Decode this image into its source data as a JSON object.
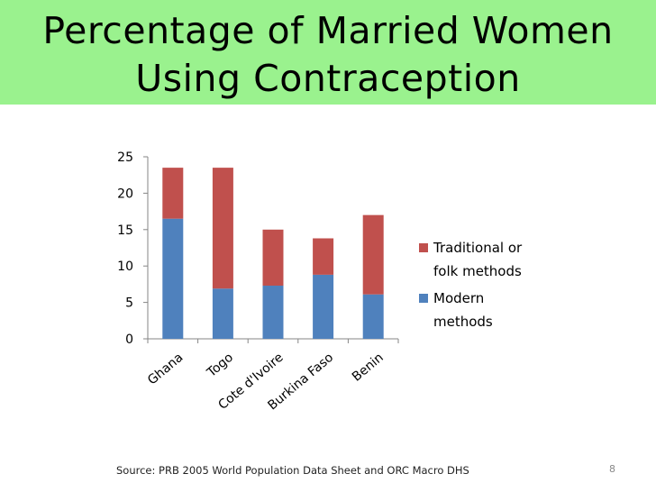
{
  "slide": {
    "title_line1": "Percentage of Married Women",
    "title_line2": "Using Contraception",
    "source": "Source: PRB 2005 World Population Data Sheet and ORC Macro DHS",
    "page_number": "8",
    "colors": {
      "title_band": "#9af28e",
      "modern": "#4f81bd",
      "traditional": "#c0504d"
    }
  },
  "chart_data": {
    "type": "bar",
    "stacked": true,
    "title": "",
    "xlabel": "",
    "ylabel": "",
    "categories": [
      "Ghana",
      "Togo",
      "Cote d'Ivoire",
      "Burkina Faso",
      "Benin"
    ],
    "series": [
      {
        "name": "Modern methods",
        "values": [
          16.5,
          6.9,
          7.3,
          8.8,
          6.1
        ]
      },
      {
        "name": "Traditional or folk methods",
        "values": [
          7.0,
          16.6,
          7.7,
          5.0,
          10.9
        ]
      }
    ],
    "ylim": [
      0,
      25
    ],
    "yticks": [
      0,
      5,
      10,
      15,
      20,
      25
    ],
    "grid": false,
    "legend": {
      "placement": "right",
      "items": [
        {
          "series": "Traditional or folk methods",
          "lines": [
            "Traditional or",
            "folk methods"
          ]
        },
        {
          "series": "Modern methods",
          "lines": [
            "Modern",
            "methods"
          ]
        }
      ]
    }
  }
}
